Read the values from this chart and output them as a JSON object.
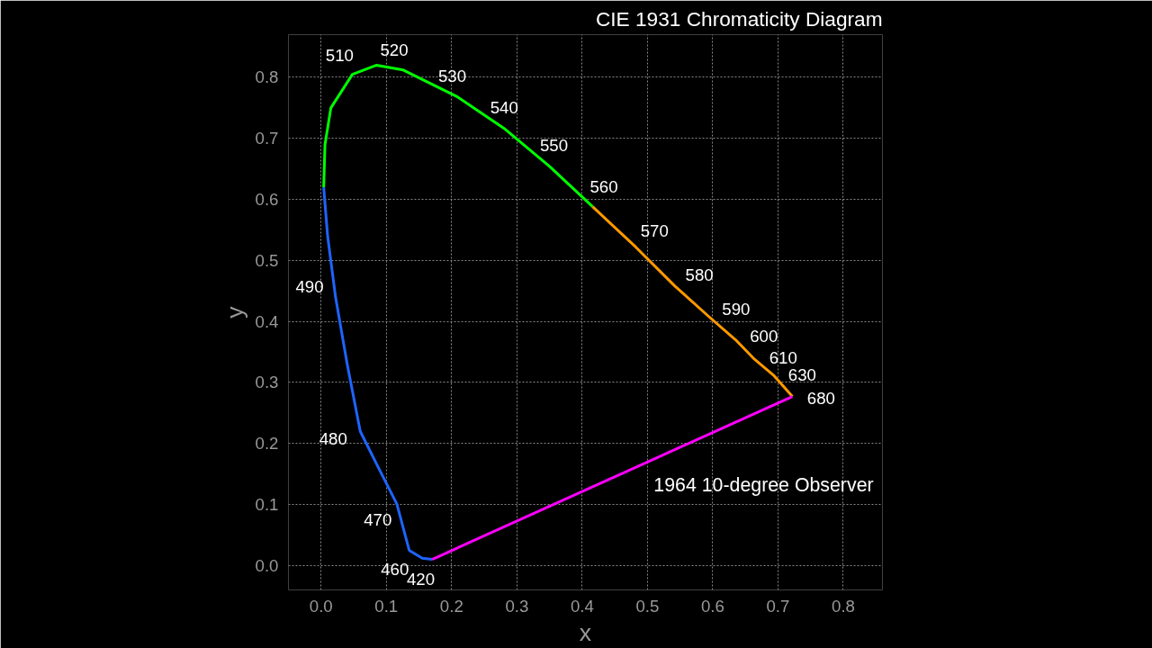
{
  "chart_data": {
    "type": "line",
    "title": "CIE 1931 Chromaticity Diagram",
    "xlabel": "x",
    "ylabel": "y",
    "series": [
      {
        "color": "#1e64ff",
        "x": [
          0.17,
          0.155,
          0.135,
          0.116,
          0.088,
          0.06,
          0.04,
          0.022,
          0.01,
          0.004
        ],
        "values": [
          0.01,
          0.012,
          0.025,
          0.101,
          0.16,
          0.22,
          0.33,
          0.441,
          0.54,
          0.62
        ]
      },
      {
        "color": "#00ff00",
        "x": [
          0.004,
          0.006,
          0.015,
          0.048,
          0.085,
          0.126,
          0.209,
          0.282,
          0.35,
          0.416
        ],
        "values": [
          0.62,
          0.69,
          0.75,
          0.805,
          0.82,
          0.812,
          0.768,
          0.715,
          0.654,
          0.588
        ]
      },
      {
        "color": "#ff9900",
        "x": [
          0.416,
          0.482,
          0.542,
          0.594,
          0.635,
          0.664,
          0.693,
          0.722
        ],
        "values": [
          0.588,
          0.522,
          0.458,
          0.408,
          0.37,
          0.338,
          0.312,
          0.277
        ]
      },
      {
        "color": "#ff00ff",
        "x": [
          0.722,
          0.17
        ],
        "values": [
          0.277,
          0.01
        ]
      }
    ],
    "annotations": [
      {
        "text": "420",
        "x": 0.17,
        "y": 0.01
      },
      {
        "text": "460",
        "x": 0.135,
        "y": 0.025
      },
      {
        "text": "470",
        "x": 0.116,
        "y": 0.101
      },
      {
        "text": "480",
        "x": 0.06,
        "y": 0.22
      },
      {
        "text": "490",
        "x": 0.022,
        "y": 0.441
      },
      {
        "text": "510",
        "x": 0.048,
        "y": 0.805
      },
      {
        "text": "520",
        "x": 0.126,
        "y": 0.812
      },
      {
        "text": "530",
        "x": 0.209,
        "y": 0.768
      },
      {
        "text": "540",
        "x": 0.282,
        "y": 0.715
      },
      {
        "text": "550",
        "x": 0.35,
        "y": 0.654
      },
      {
        "text": "560",
        "x": 0.416,
        "y": 0.588
      },
      {
        "text": "570",
        "x": 0.482,
        "y": 0.522
      },
      {
        "text": "580",
        "x": 0.542,
        "y": 0.458
      },
      {
        "text": "590",
        "x": 0.594,
        "y": 0.408
      },
      {
        "text": "600",
        "x": 0.635,
        "y": 0.37
      },
      {
        "text": "610",
        "x": 0.664,
        "y": 0.338
      },
      {
        "text": "630",
        "x": 0.693,
        "y": 0.312
      },
      {
        "text": "680",
        "x": 0.722,
        "y": 0.277
      },
      "1964 10-degree Observer"
    ],
    "xlim": [
      -0.05,
      0.86
    ],
    "ylim": [
      -0.04,
      0.87
    ],
    "xticks": [
      {
        "value": 0,
        "label": "0.0"
      },
      0.1,
      0.2,
      0.3,
      0.4,
      0.5,
      0.6,
      0.7,
      0.8
    ],
    "yticks": [
      {
        "value": 0,
        "label": "0.0"
      },
      0.1,
      0.2,
      0.3,
      0.4,
      0.5,
      0.6,
      0.7,
      0.8
    ],
    "grid": true,
    "line_style": "solid"
  }
}
